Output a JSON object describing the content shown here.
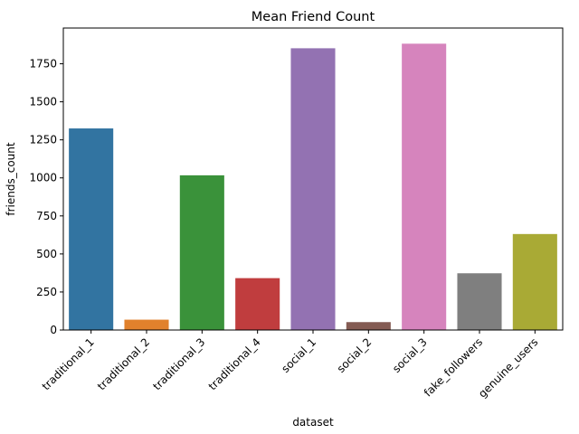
{
  "chart_data": {
    "type": "bar",
    "title": "Mean Friend Count",
    "xlabel": "dataset",
    "ylabel": "friends_count",
    "categories": [
      "traditional_1",
      "traditional_2",
      "traditional_3",
      "traditional_4",
      "social_1",
      "social_2",
      "social_3",
      "fake_followers",
      "genuine_users"
    ],
    "values": [
      1325,
      68,
      1017,
      341,
      1852,
      52,
      1882,
      373,
      631
    ],
    "colors": [
      "#3274a1",
      "#e1812c",
      "#3a923a",
      "#c03d3e",
      "#9372b2",
      "#845b53",
      "#d684bd",
      "#7f7f7f",
      "#a9aa35"
    ],
    "ylim": [
      0,
      1985
    ],
    "yticks": [
      0,
      250,
      500,
      750,
      1000,
      1250,
      1500,
      1750
    ],
    "grid": false,
    "legend": "none"
  }
}
